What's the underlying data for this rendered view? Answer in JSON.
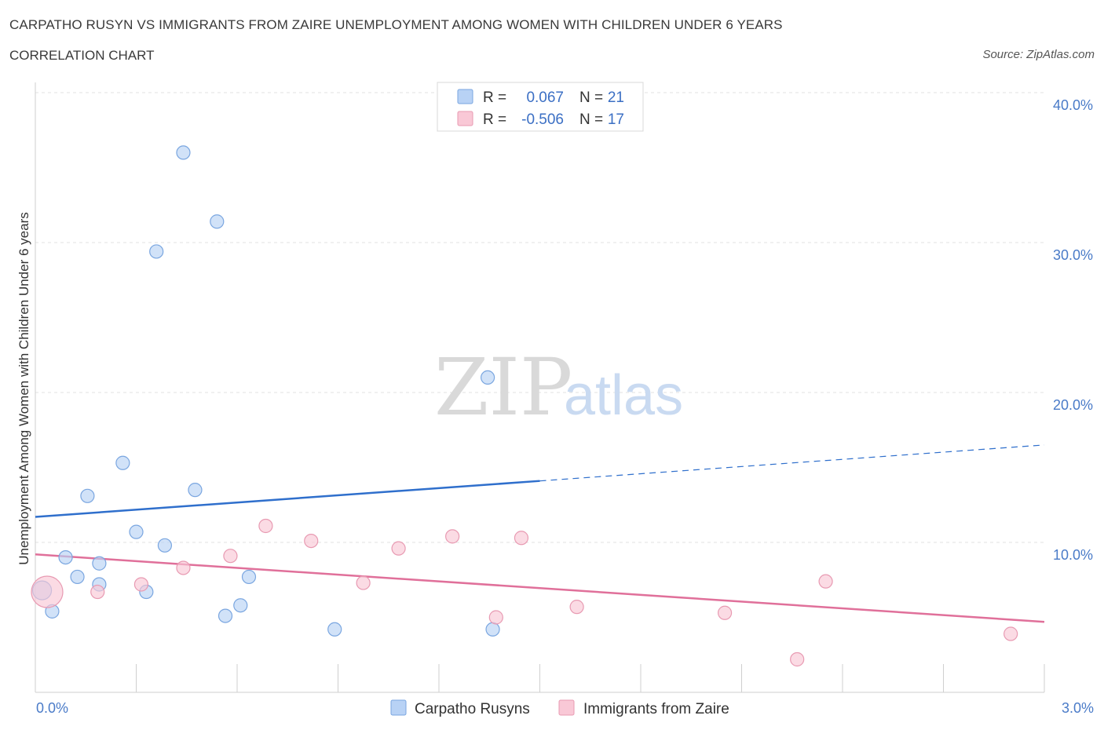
{
  "header": {
    "title": "CARPATHO RUSYN VS IMMIGRANTS FROM ZAIRE UNEMPLOYMENT AMONG WOMEN WITH CHILDREN UNDER 6 YEARS",
    "subtitle": "CORRELATION CHART",
    "source": "Source: ZipAtlas.com"
  },
  "watermark": {
    "zip": "ZIP",
    "atlas": "atlas"
  },
  "legend": {
    "r_label": "R =",
    "n_label": "N =",
    "rows": [
      {
        "r": "0.067",
        "n": "21",
        "color": "#b8d2f5",
        "stroke": "#7aa6e0"
      },
      {
        "r": "-0.506",
        "n": "17",
        "color": "#f9c8d6",
        "stroke": "#e89ab2"
      }
    ]
  },
  "bottom_legend": [
    {
      "label": "Carpatho Rusyns",
      "color": "#b8d2f5",
      "stroke": "#7aa6e0"
    },
    {
      "label": "Immigrants from Zaire",
      "color": "#f9c8d6",
      "stroke": "#e89ab2"
    }
  ],
  "chart_data": {
    "type": "scatter",
    "title": "CARPATHO RUSYN VS IMMIGRANTS FROM ZAIRE UNEMPLOYMENT AMONG WOMEN WITH CHILDREN UNDER 6 YEARS",
    "xlabel": "",
    "ylabel": "Unemployment Among Women with Children Under 6 years",
    "xlim": [
      0,
      3.0
    ],
    "ylim": [
      0,
      40
    ],
    "x_tick_labels": [
      "0.0%",
      "3.0%"
    ],
    "y_ticks": [
      10,
      20,
      30,
      40
    ],
    "y_tick_labels": [
      "10.0%",
      "20.0%",
      "30.0%",
      "40.0%"
    ],
    "grid": true,
    "legend_position": "top-center",
    "series": [
      {
        "name": "Carpatho Rusyns",
        "color": "#b8d2f5",
        "stroke": "#7aa6e0",
        "line_color": "#2f6fcc",
        "trend": {
          "x0": 0.0,
          "y0": 11.7,
          "x1": 1.5,
          "y1": 14.1,
          "x_dash_end": 3.0,
          "y_dash_end": 16.5
        },
        "points": [
          {
            "x": 0.02,
            "y": 6.8,
            "big": true
          },
          {
            "x": 0.05,
            "y": 5.4
          },
          {
            "x": 0.09,
            "y": 9.0
          },
          {
            "x": 0.125,
            "y": 7.7
          },
          {
            "x": 0.155,
            "y": 13.1
          },
          {
            "x": 0.19,
            "y": 8.6
          },
          {
            "x": 0.19,
            "y": 7.2
          },
          {
            "x": 0.26,
            "y": 15.3
          },
          {
            "x": 0.3,
            "y": 10.7
          },
          {
            "x": 0.33,
            "y": 6.7
          },
          {
            "x": 0.36,
            "y": 29.4
          },
          {
            "x": 0.385,
            "y": 9.8
          },
          {
            "x": 0.44,
            "y": 36.0
          },
          {
            "x": 0.475,
            "y": 13.5
          },
          {
            "x": 0.54,
            "y": 31.4
          },
          {
            "x": 0.565,
            "y": 5.1
          },
          {
            "x": 0.61,
            "y": 5.8
          },
          {
            "x": 0.635,
            "y": 7.7
          },
          {
            "x": 0.89,
            "y": 4.2
          },
          {
            "x": 1.345,
            "y": 21.0
          },
          {
            "x": 1.36,
            "y": 4.2
          }
        ]
      },
      {
        "name": "Immigrants from Zaire",
        "color": "#f9c8d6",
        "stroke": "#e89ab2",
        "line_color": "#e0709a",
        "trend": {
          "x0": 0.0,
          "y0": 9.2,
          "x1": 3.0,
          "y1": 4.7
        },
        "points": [
          {
            "x": 0.035,
            "y": 6.7,
            "big": true
          },
          {
            "x": 0.185,
            "y": 6.7
          },
          {
            "x": 0.315,
            "y": 7.2
          },
          {
            "x": 0.44,
            "y": 8.3
          },
          {
            "x": 0.58,
            "y": 9.1
          },
          {
            "x": 0.685,
            "y": 11.1
          },
          {
            "x": 0.82,
            "y": 10.1
          },
          {
            "x": 0.975,
            "y": 7.3
          },
          {
            "x": 1.08,
            "y": 9.6
          },
          {
            "x": 1.24,
            "y": 10.4
          },
          {
            "x": 1.37,
            "y": 5.0
          },
          {
            "x": 1.445,
            "y": 10.3
          },
          {
            "x": 1.61,
            "y": 5.7
          },
          {
            "x": 2.05,
            "y": 5.3
          },
          {
            "x": 2.265,
            "y": 2.2
          },
          {
            "x": 2.35,
            "y": 7.4
          },
          {
            "x": 2.9,
            "y": 3.9
          }
        ]
      }
    ]
  }
}
